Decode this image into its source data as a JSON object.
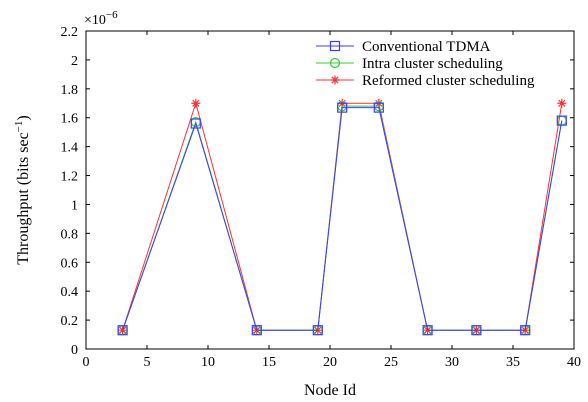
{
  "chart_data": {
    "type": "line",
    "title": "",
    "xlabel": "Node Id",
    "ylabel_main": "Throughput (bits sec",
    "ylabel_sup": "−1",
    "ylabel_close": ")",
    "scale_note": {
      "base": "×10",
      "exp": "−6"
    },
    "xlim": [
      0,
      40
    ],
    "ylim": [
      0,
      2.2
    ],
    "xticks": [
      0,
      5,
      10,
      15,
      20,
      25,
      30,
      35,
      40
    ],
    "xtick_labels": [
      "0",
      "5",
      "10",
      "15",
      "20",
      "25",
      "30",
      "35",
      "40"
    ],
    "yticks": [
      0,
      0.2,
      0.4,
      0.6,
      0.8,
      1.0,
      1.2,
      1.4,
      1.6,
      1.8,
      2.0,
      2.2
    ],
    "ytick_labels": [
      "0",
      "0.2",
      "0.4",
      "0.6",
      "0.8",
      "1",
      "1.2",
      "1.4",
      "1.6",
      "1.8",
      "2",
      "2.2"
    ],
    "grid": false,
    "legend_position": "top-right",
    "x": [
      3,
      9,
      14,
      19,
      21,
      24,
      28,
      32,
      36,
      39
    ],
    "series": [
      {
        "name": "Conventional TDMA",
        "marker": "square",
        "color": "#3d3dff",
        "values": [
          0.13,
          1.56,
          0.13,
          0.13,
          1.67,
          1.67,
          0.13,
          0.13,
          0.13,
          1.58
        ]
      },
      {
        "name": "Intra cluster scheduling",
        "marker": "circle",
        "color": "#2fcf2f",
        "values": [
          0.13,
          1.57,
          0.13,
          0.13,
          1.68,
          1.68,
          0.13,
          0.13,
          0.13,
          1.58
        ]
      },
      {
        "name": "Reformed cluster scheduling",
        "marker": "star",
        "color": "#ff3030",
        "values": [
          0.13,
          1.7,
          0.13,
          0.13,
          1.7,
          1.7,
          0.13,
          0.13,
          0.13,
          1.7
        ]
      }
    ]
  }
}
